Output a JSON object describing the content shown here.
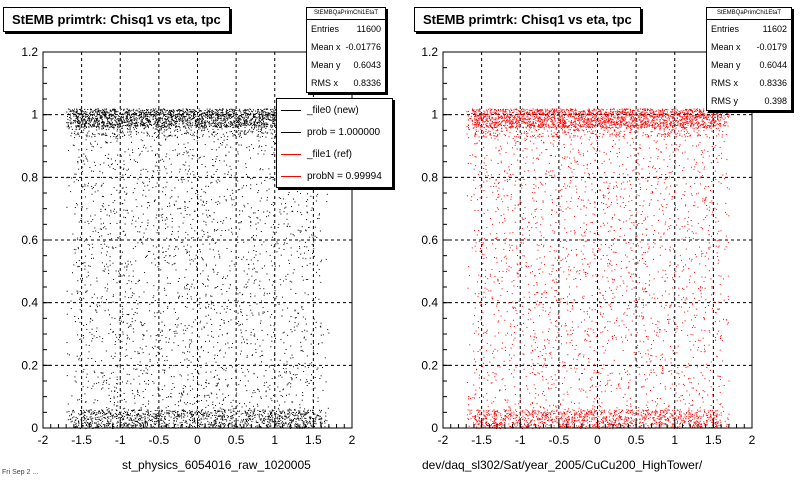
{
  "chart_data": [
    {
      "type": "scatter",
      "title": "StEMB primtrk: Chisq1 vs eta, tpc",
      "xlabel": "st_physics_6054016_raw_1020005",
      "ylabel": "",
      "xlim": [
        -2,
        2
      ],
      "ylim": [
        0,
        1.2
      ],
      "x_ticks": [
        "-2",
        "-1.5",
        "-1",
        "-0.5",
        "0",
        "0.5",
        "1",
        "1.5",
        "2"
      ],
      "y_ticks": [
        "0",
        "0.2",
        "0.4",
        "0.6",
        "0.8",
        "1",
        "1.2"
      ],
      "grid": true,
      "marker_color": "#000000",
      "x_extent": [
        -1.7,
        1.7
      ],
      "dense_bands": [
        {
          "y_range": [
            0.96,
            1.02
          ],
          "label": "near 1"
        },
        {
          "y_range": [
            0.0,
            0.06
          ],
          "label": "near 0"
        }
      ],
      "stats": {
        "name": "StEMBQaPrimChi1EtaT",
        "rows": [
          {
            "label": "Entries",
            "value": "11600"
          },
          {
            "label": "Mean x",
            "value": "-0.01776"
          },
          {
            "label": "Mean y",
            "value": "0.6043"
          },
          {
            "label": "RMS x",
            "value": "0.8336"
          }
        ]
      },
      "legend": {
        "placement": "top-right",
        "entries": [
          {
            "label": "_file0 (new)",
            "color": "#000000"
          },
          {
            "label": "prob = 1.000000",
            "color": "#000000"
          },
          {
            "label": "_file1 (ref)",
            "color": "#ff0000"
          },
          {
            "label": "probN = 0.99994",
            "color": "#ff0000"
          }
        ]
      }
    },
    {
      "type": "scatter",
      "title": "StEMB primtrk: Chisq1 vs eta, tpc",
      "xlabel": "dev/daq_sl302/Sat/year_2005/CuCu200_HighTower/",
      "ylabel": "",
      "xlim": [
        -2,
        2
      ],
      "ylim": [
        0,
        1.2
      ],
      "x_ticks": [
        "-2",
        "-1.5",
        "-1",
        "-0.5",
        "0",
        "0.5",
        "1",
        "1.5",
        "2"
      ],
      "y_ticks": [
        "0",
        "0.2",
        "0.4",
        "0.6",
        "0.8",
        "1",
        "1.2"
      ],
      "grid": true,
      "marker_color": "#ff0000",
      "x_extent": [
        -1.7,
        1.7
      ],
      "dense_bands": [
        {
          "y_range": [
            0.96,
            1.02
          ],
          "label": "near 1"
        },
        {
          "y_range": [
            0.0,
            0.06
          ],
          "label": "near 0"
        }
      ],
      "stats": {
        "name": "StEMBQaPrimChi1EtaT",
        "rows": [
          {
            "label": "Entries",
            "value": "11602"
          },
          {
            "label": "Mean x",
            "value": "-0.0179"
          },
          {
            "label": "Mean y",
            "value": "0.6044"
          },
          {
            "label": "RMS x",
            "value": "0.8336"
          },
          {
            "label": "RMS y",
            "value": "0.398"
          }
        ]
      }
    }
  ],
  "footer_small_text": "Fri Sep 2 ..."
}
